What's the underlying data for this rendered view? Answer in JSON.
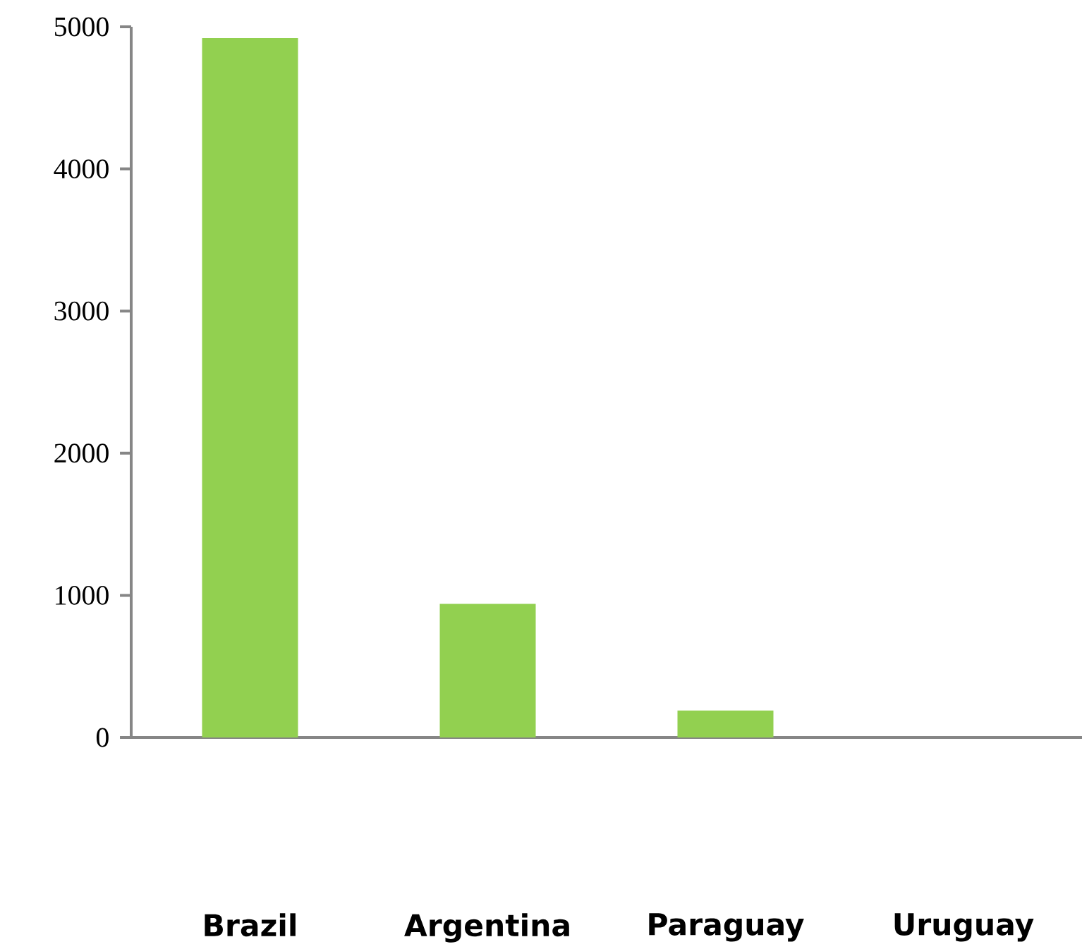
{
  "chart_data": {
    "type": "bar",
    "categories": [
      "Brazil",
      "Argentina",
      "Paraguay",
      "Uruguay"
    ],
    "values": [
      4920,
      940,
      190,
      0
    ],
    "color": "#92d050",
    "ylim": [
      0,
      5000
    ],
    "yticks": [
      0,
      1000,
      2000,
      3000,
      4000,
      5000
    ],
    "grid": false
  }
}
